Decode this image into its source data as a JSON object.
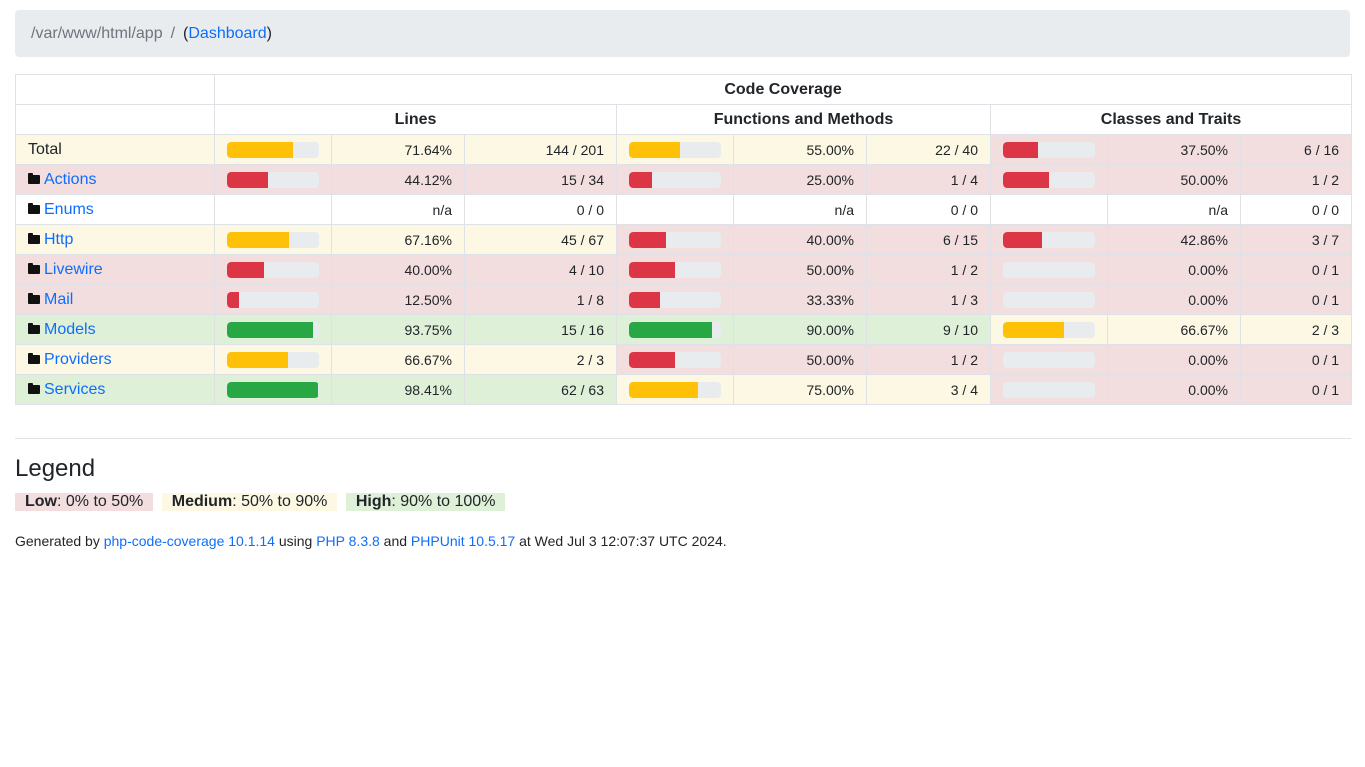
{
  "breadcrumb": {
    "path": "/var/www/html/app",
    "separator": "/",
    "link_label": "Dashboard"
  },
  "table": {
    "group_header": "Code Coverage",
    "col_headers": [
      "Lines",
      "Functions and Methods",
      "Classes and Traits"
    ],
    "rows": [
      {
        "name": "Total",
        "folder": false,
        "lines": {
          "pct": "71.64%",
          "ratio": "144 / 201",
          "level": "medium",
          "fill": 71.64
        },
        "funcs": {
          "pct": "55.00%",
          "ratio": "22 / 40",
          "level": "medium",
          "fill": 55.0
        },
        "classes": {
          "pct": "37.50%",
          "ratio": "6 / 16",
          "level": "low",
          "fill": 37.5
        }
      },
      {
        "name": "Actions",
        "folder": true,
        "lines": {
          "pct": "44.12%",
          "ratio": "15 / 34",
          "level": "low",
          "fill": 44.12
        },
        "funcs": {
          "pct": "25.00%",
          "ratio": "1 / 4",
          "level": "low",
          "fill": 25.0
        },
        "classes": {
          "pct": "50.00%",
          "ratio": "1 / 2",
          "level": "low",
          "fill": 50.0
        }
      },
      {
        "name": "Enums",
        "folder": true,
        "lines": {
          "pct": "n/a",
          "ratio": "0 / 0",
          "level": "none",
          "fill": null
        },
        "funcs": {
          "pct": "n/a",
          "ratio": "0 / 0",
          "level": "none",
          "fill": null
        },
        "classes": {
          "pct": "n/a",
          "ratio": "0 / 0",
          "level": "none",
          "fill": null
        }
      },
      {
        "name": "Http",
        "folder": true,
        "lines": {
          "pct": "67.16%",
          "ratio": "45 / 67",
          "level": "medium",
          "fill": 67.16
        },
        "funcs": {
          "pct": "40.00%",
          "ratio": "6 / 15",
          "level": "low",
          "fill": 40.0
        },
        "classes": {
          "pct": "42.86%",
          "ratio": "3 / 7",
          "level": "low",
          "fill": 42.86
        }
      },
      {
        "name": "Livewire",
        "folder": true,
        "lines": {
          "pct": "40.00%",
          "ratio": "4 / 10",
          "level": "low",
          "fill": 40.0
        },
        "funcs": {
          "pct": "50.00%",
          "ratio": "1 / 2",
          "level": "low",
          "fill": 50.0
        },
        "classes": {
          "pct": "0.00%",
          "ratio": "0 / 1",
          "level": "low",
          "fill": 0
        }
      },
      {
        "name": "Mail",
        "folder": true,
        "lines": {
          "pct": "12.50%",
          "ratio": "1 / 8",
          "level": "low",
          "fill": 12.5
        },
        "funcs": {
          "pct": "33.33%",
          "ratio": "1 / 3",
          "level": "low",
          "fill": 33.33
        },
        "classes": {
          "pct": "0.00%",
          "ratio": "0 / 1",
          "level": "low",
          "fill": 0
        }
      },
      {
        "name": "Models",
        "folder": true,
        "lines": {
          "pct": "93.75%",
          "ratio": "15 / 16",
          "level": "high",
          "fill": 93.75
        },
        "funcs": {
          "pct": "90.00%",
          "ratio": "9 / 10",
          "level": "high",
          "fill": 90.0
        },
        "classes": {
          "pct": "66.67%",
          "ratio": "2 / 3",
          "level": "medium",
          "fill": 66.67
        }
      },
      {
        "name": "Providers",
        "folder": true,
        "lines": {
          "pct": "66.67%",
          "ratio": "2 / 3",
          "level": "medium",
          "fill": 66.67
        },
        "funcs": {
          "pct": "50.00%",
          "ratio": "1 / 2",
          "level": "low",
          "fill": 50.0
        },
        "classes": {
          "pct": "0.00%",
          "ratio": "0 / 1",
          "level": "low",
          "fill": 0
        }
      },
      {
        "name": "Services",
        "folder": true,
        "lines": {
          "pct": "98.41%",
          "ratio": "62 / 63",
          "level": "high",
          "fill": 98.41
        },
        "funcs": {
          "pct": "75.00%",
          "ratio": "3 / 4",
          "level": "medium",
          "fill": 75.0
        },
        "classes": {
          "pct": "0.00%",
          "ratio": "0 / 1",
          "level": "low",
          "fill": 0
        }
      }
    ]
  },
  "legend": {
    "title": "Legend",
    "low_label": "Low",
    "low_range": ": 0% to 50%",
    "medium_label": "Medium",
    "medium_range": ": 50% to 90%",
    "high_label": "High",
    "high_range": ": 90% to 100%"
  },
  "footer": {
    "prefix": "Generated by ",
    "tool_link": "php-code-coverage 10.1.14",
    "using": " using ",
    "php_link": "PHP 8.3.8",
    "and": " and ",
    "phpunit_link": "PHPUnit 10.5.17",
    "suffix": " at Wed Jul 3 12:07:37 UTC 2024."
  },
  "colors": {
    "low_bar": "#dc3545",
    "medium_bar": "#ffc107",
    "high_bar": "#28a745",
    "low_bg": "#f2dede",
    "medium_bg": "#fcf8e3",
    "high_bg": "#dff0d8",
    "link": "#0d6efd"
  }
}
